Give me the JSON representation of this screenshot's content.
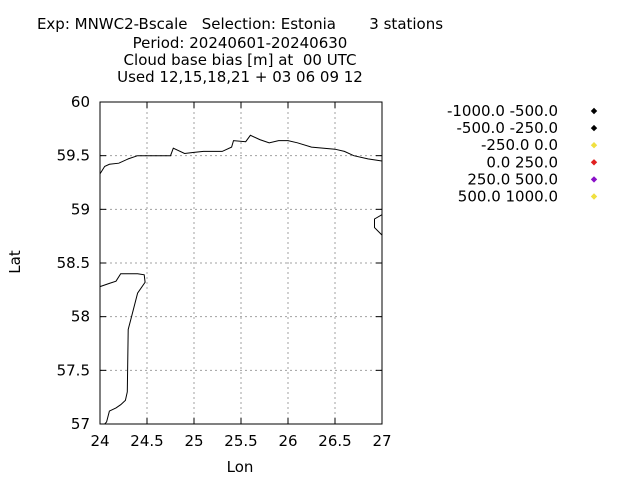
{
  "header": {
    "line1": "Exp: MNWC2-Bscale   Selection: Estonia       3 stations",
    "line2": "Period: 20240601-20240630",
    "line3": "Cloud base bias [m] at  00 UTC",
    "line4": "Used 12,15,18,21 + 03 06 09 12"
  },
  "chart_data": {
    "type": "scatter",
    "xlabel": "Lon",
    "ylabel": "Lat",
    "xlim": [
      24,
      27
    ],
    "ylim": [
      57,
      60
    ],
    "xticks": [
      "24",
      "24.5",
      "25",
      "25.5",
      "26",
      "26.5",
      "27"
    ],
    "yticks": [
      "57",
      "57.5",
      "58",
      "58.5",
      "59",
      "59.5",
      "60"
    ],
    "grid": true,
    "legend_placement": "right",
    "series": [
      {
        "name": "-1000.0 -500.0",
        "color": "#000000",
        "values": []
      },
      {
        "name": "-500.0 -250.0",
        "color": "#000000",
        "values": []
      },
      {
        "name": "-250.0 0.0",
        "color": "#f0e040",
        "values": []
      },
      {
        "name": "0.0 250.0",
        "color": "#e02020",
        "values": []
      },
      {
        "name": "250.0 500.0",
        "color": "#8a10c8",
        "values": []
      },
      {
        "name": "500.0 1000.0",
        "color": "#f0e040",
        "values": []
      }
    ],
    "coastlines": [
      [
        [
          24.0,
          59.33
        ],
        [
          24.05,
          59.4
        ],
        [
          24.1,
          59.42
        ],
        [
          24.2,
          59.43
        ],
        [
          24.3,
          59.47
        ],
        [
          24.4,
          59.5
        ],
        [
          24.6,
          59.5
        ],
        [
          24.75,
          59.5
        ],
        [
          24.78,
          59.57
        ],
        [
          24.9,
          59.52
        ],
        [
          25.0,
          59.53
        ],
        [
          25.1,
          59.54
        ],
        [
          25.3,
          59.54
        ],
        [
          25.4,
          59.58
        ],
        [
          25.42,
          59.64
        ],
        [
          25.55,
          59.63
        ],
        [
          25.6,
          59.69
        ],
        [
          25.7,
          59.65
        ],
        [
          25.8,
          59.62
        ],
        [
          25.9,
          59.64
        ],
        [
          26.0,
          59.64
        ],
        [
          26.1,
          59.62
        ],
        [
          26.25,
          59.58
        ],
        [
          26.5,
          59.56
        ],
        [
          26.6,
          59.54
        ],
        [
          26.7,
          59.5
        ],
        [
          26.85,
          59.47
        ],
        [
          27.0,
          59.45
        ]
      ],
      [
        [
          27.0,
          58.95
        ],
        [
          26.92,
          58.91
        ],
        [
          26.92,
          58.83
        ],
        [
          27.0,
          58.76
        ]
      ],
      [
        [
          24.0,
          58.28
        ],
        [
          24.1,
          58.31
        ],
        [
          24.17,
          58.33
        ],
        [
          24.22,
          58.4
        ],
        [
          24.4,
          58.4
        ],
        [
          24.47,
          58.39
        ],
        [
          24.48,
          58.32
        ],
        [
          24.4,
          58.22
        ],
        [
          24.33,
          57.98
        ],
        [
          24.3,
          57.88
        ],
        [
          24.29,
          57.3
        ],
        [
          24.27,
          57.22
        ],
        [
          24.22,
          57.18
        ],
        [
          24.17,
          57.15
        ],
        [
          24.1,
          57.12
        ],
        [
          24.07,
          57.02
        ],
        [
          24.05,
          57.0
        ]
      ]
    ]
  }
}
